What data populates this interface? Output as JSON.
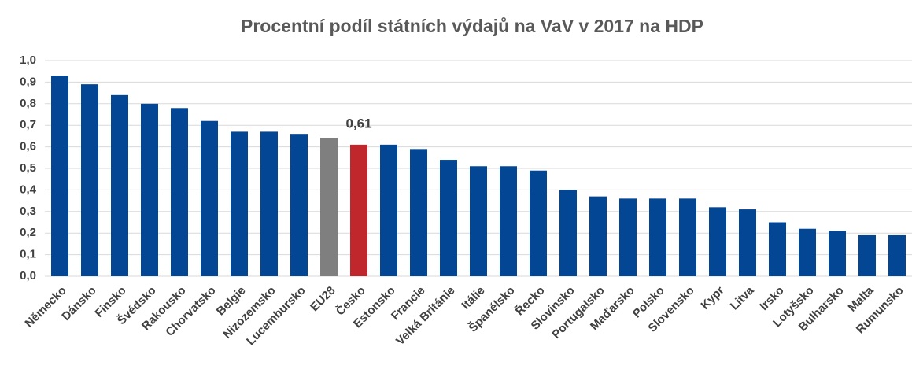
{
  "chart_data": {
    "type": "bar",
    "title": "Procentní podíl státních výdajů na VaV v 2017 na HDP",
    "categories": [
      "Německo",
      "Dánsko",
      "Finsko",
      "Švédsko",
      "Rakousko",
      "Chorvatsko",
      "Belgie",
      "Nizozemsko",
      "Lucembursko",
      "EU28",
      "Česko",
      "Estonsko",
      "Francie",
      "Velká Británie",
      "Itálie",
      "Španělsko",
      "Řecko",
      "Slovinsko",
      "Portugalsko",
      "Maďarsko",
      "Polsko",
      "Slovensko",
      "Kypr",
      "Litva",
      "Irsko",
      "Lotyšsko",
      "Bulharsko",
      "Malta",
      "Rumunsko"
    ],
    "values": [
      0.93,
      0.89,
      0.84,
      0.8,
      0.78,
      0.72,
      0.67,
      0.67,
      0.66,
      0.64,
      0.61,
      0.61,
      0.59,
      0.54,
      0.51,
      0.51,
      0.49,
      0.4,
      0.37,
      0.36,
      0.36,
      0.36,
      0.32,
      0.31,
      0.25,
      0.22,
      0.21,
      0.19,
      0.19
    ],
    "value_labels": [
      null,
      null,
      null,
      null,
      null,
      null,
      null,
      null,
      null,
      null,
      "0,61",
      null,
      null,
      null,
      null,
      null,
      null,
      null,
      null,
      null,
      null,
      null,
      null,
      null,
      null,
      null,
      null,
      null,
      null
    ],
    "colors": [
      "#034694",
      "#034694",
      "#034694",
      "#034694",
      "#034694",
      "#034694",
      "#034694",
      "#034694",
      "#034694",
      "#7f7f7f",
      "#c0272d",
      "#034694",
      "#034694",
      "#034694",
      "#034694",
      "#034694",
      "#034694",
      "#034694",
      "#034694",
      "#034694",
      "#034694",
      "#034694",
      "#034694",
      "#034694",
      "#034694",
      "#034694",
      "#034694",
      "#034694",
      "#034694"
    ],
    "ylim": [
      0,
      1
    ],
    "yticks": [
      {
        "value": 0,
        "label": "0,0"
      },
      {
        "value": 0.1,
        "label": "0,1"
      },
      {
        "value": 0.2,
        "label": "0,2"
      },
      {
        "value": 0.3,
        "label": "0,3"
      },
      {
        "value": 0.4,
        "label": "0,4"
      },
      {
        "value": 0.5,
        "label": "0,5"
      },
      {
        "value": 0.6,
        "label": "0,6"
      },
      {
        "value": 0.7,
        "label": "0,7"
      },
      {
        "value": 0.8,
        "label": "0,8"
      },
      {
        "value": 0.9,
        "label": "0,9"
      },
      {
        "value": 1,
        "label": "1,0"
      }
    ],
    "grid": true
  }
}
